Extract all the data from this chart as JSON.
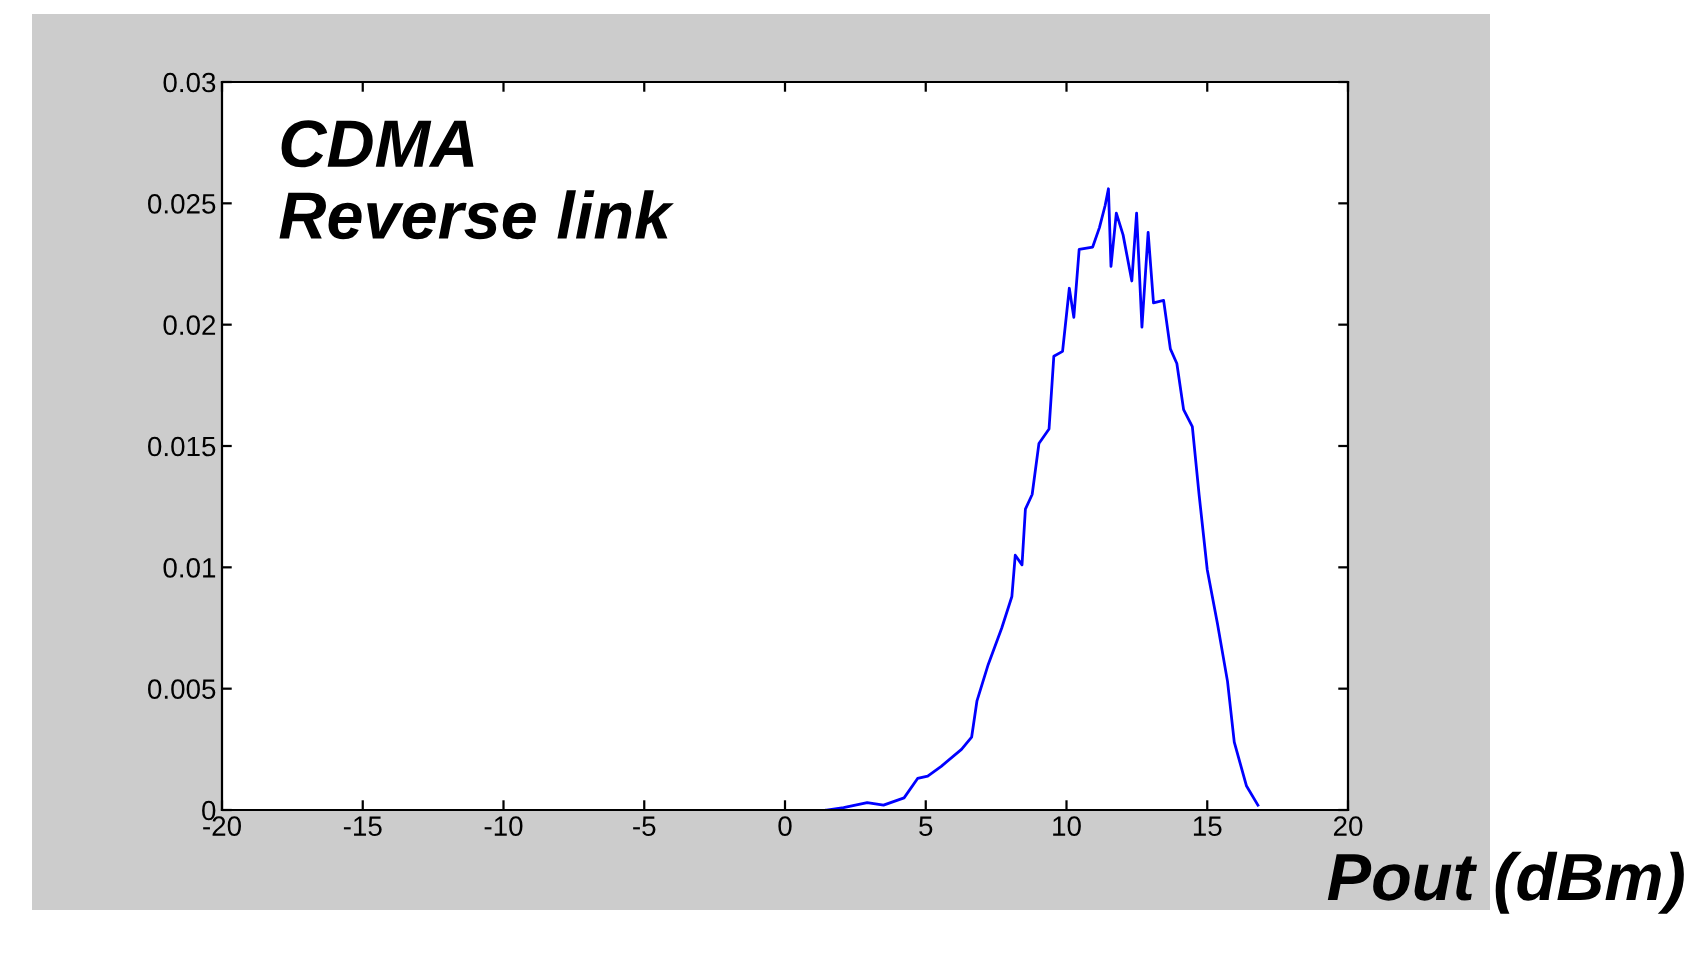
{
  "chart_data": {
    "type": "line",
    "xlabel": "Pout (dBm)",
    "annotations": [
      "CDMA\nReverse link"
    ],
    "series": [
      {
        "color": "#0000ff",
        "x": [
          1.48,
          2.08,
          2.92,
          3.5,
          4.23,
          4.71,
          5.07,
          5.55,
          6.27,
          6.63,
          6.82,
          7.22,
          7.7,
          8.06,
          8.18,
          8.42,
          8.54,
          8.78,
          9.02,
          9.38,
          9.55,
          9.86,
          10.1,
          10.26,
          10.45,
          10.93,
          11.17,
          11.37,
          11.49,
          11.58,
          11.77,
          12.01,
          12.32,
          12.49,
          12.68,
          12.9,
          13.09,
          13.45,
          13.69,
          13.92,
          14.16,
          14.47,
          14.71,
          15.0,
          15.36,
          15.72,
          15.96,
          16.39,
          16.8
        ],
        "values": [
          0,
          0.0001,
          0.0003,
          0.0002,
          0.0005,
          0.0013,
          0.0014,
          0.0018,
          0.0025,
          0.003,
          0.0045,
          0.006,
          0.0075,
          0.0088,
          0.0105,
          0.0101,
          0.0124,
          0.013,
          0.0151,
          0.0157,
          0.0187,
          0.0189,
          0.0215,
          0.0203,
          0.0231,
          0.0232,
          0.024,
          0.0249,
          0.0256,
          0.0224,
          0.0246,
          0.0237,
          0.0218,
          0.0246,
          0.0199,
          0.0238,
          0.0209,
          0.021,
          0.019,
          0.0184,
          0.0165,
          0.0158,
          0.013,
          0.0099,
          0.0077,
          0.0053,
          0.0028,
          0.001,
          0.0002
        ]
      }
    ],
    "xlim": [
      -20,
      20
    ],
    "xticks": [
      -20,
      -15,
      -10,
      -5,
      0,
      5,
      10,
      15,
      20
    ],
    "ylim": [
      0,
      0.03
    ],
    "yticks": [
      0,
      0.005,
      0.01,
      0.015,
      0.02,
      0.025,
      0.03
    ],
    "grid": false,
    "legend": false,
    "marker": "none",
    "line_style": "solid"
  }
}
